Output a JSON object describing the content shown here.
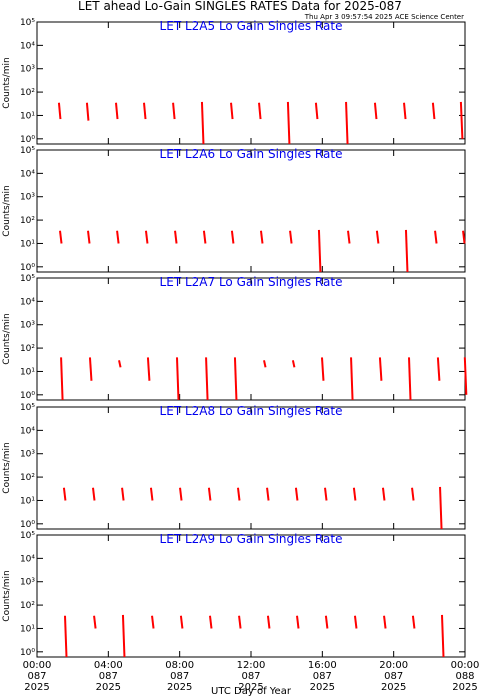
{
  "title": "LET ahead Lo-Gain SINGLES RATES Data for 2025-087",
  "subtitle": "Thu Apr  3 09:57:54 2025 ACE Science Center",
  "x_label": "UTC Day of Year",
  "chart_data": [
    {
      "type": "range",
      "title": "LET L2A5 Lo Gain Singles Rate",
      "y_label": "Counts/min",
      "color": "#ff0000",
      "log_scale": true,
      "xlim": [
        0,
        24
      ],
      "xticks": [
        0,
        4,
        8,
        12,
        16,
        20,
        24
      ],
      "ylim": [
        0.6,
        100000
      ],
      "yticks": [
        {
          "value": 1,
          "label": "10⁰"
        },
        {
          "value": 10,
          "label": "10¹"
        },
        {
          "value": 100,
          "label": "10²"
        },
        {
          "value": 1000,
          "label": "10³"
        },
        {
          "value": 10000,
          "label": "10⁴"
        },
        {
          "value": 100000,
          "label": "10⁵"
        }
      ],
      "x": [
        1.23,
        2.8,
        4.43,
        6.0,
        7.63,
        9.25,
        10.88,
        12.45,
        14.07,
        15.64,
        17.33,
        18.95,
        20.58,
        22.2,
        23.77
      ],
      "high": [
        35,
        35,
        35,
        35,
        35,
        38,
        35,
        35,
        38,
        35,
        38,
        35,
        35,
        35,
        38
      ],
      "low": [
        7,
        6,
        7,
        7,
        7,
        0.6,
        7,
        7,
        0.6,
        7,
        0.6,
        7,
        7,
        7,
        1
      ]
    },
    {
      "type": "range",
      "title": "LET L2A6 Lo Gain Singles Rate",
      "y_label": "Counts/min",
      "color": "#ff0000",
      "log_scale": true,
      "xlim": [
        0,
        24
      ],
      "xticks": [
        0,
        4,
        8,
        12,
        16,
        20,
        24
      ],
      "ylim": [
        0.6,
        100000
      ],
      "yticks": [
        {
          "value": 1,
          "label": "10⁰"
        },
        {
          "value": 10,
          "label": "10¹"
        },
        {
          "value": 100,
          "label": "10²"
        },
        {
          "value": 1000,
          "label": "10³"
        },
        {
          "value": 10000,
          "label": "10⁴"
        },
        {
          "value": 100000,
          "label": "10⁵"
        }
      ],
      "x": [
        1.29,
        2.86,
        4.49,
        6.11,
        7.74,
        9.36,
        10.93,
        12.56,
        14.19,
        15.81,
        17.44,
        19.06,
        20.69,
        22.32,
        23.89
      ],
      "high": [
        35,
        35,
        35,
        35,
        35,
        35,
        35,
        35,
        35,
        38,
        35,
        35,
        38,
        35,
        35
      ],
      "low": [
        10,
        10,
        10,
        10,
        10,
        10,
        10,
        10,
        10,
        0.6,
        10,
        10,
        0.6,
        10,
        10
      ]
    },
    {
      "type": "range",
      "title": "LET L2A7 Lo Gain Singles Rate",
      "y_label": "Counts/min",
      "color": "#ff0000",
      "log_scale": true,
      "xlim": [
        0,
        24
      ],
      "xticks": [
        0,
        4,
        8,
        12,
        16,
        20,
        24
      ],
      "ylim": [
        0.6,
        100000
      ],
      "yticks": [
        {
          "value": 1,
          "label": "10⁰"
        },
        {
          "value": 10,
          "label": "10¹"
        },
        {
          "value": 100,
          "label": "10²"
        },
        {
          "value": 1000,
          "label": "10³"
        },
        {
          "value": 10000,
          "label": "10⁴"
        },
        {
          "value": 100000,
          "label": "10⁵"
        }
      ],
      "x": [
        1.35,
        2.97,
        4.6,
        6.22,
        7.85,
        9.48,
        11.1,
        12.73,
        14.35,
        15.98,
        17.61,
        19.23,
        20.86,
        22.48,
        23.99
      ],
      "high": [
        40,
        40,
        30,
        40,
        40,
        40,
        40,
        30,
        30,
        40,
        40,
        40,
        40,
        40,
        40
      ],
      "low": [
        0.6,
        4,
        15,
        4,
        0.6,
        0.6,
        0.6,
        15,
        15,
        4,
        0.6,
        4,
        0.6,
        4,
        1
      ]
    },
    {
      "type": "range",
      "title": "LET L2A8 Lo Gain Singles Rate",
      "y_label": "Counts/min",
      "color": "#ff0000",
      "log_scale": true,
      "xlim": [
        0,
        24
      ],
      "xticks": [
        0,
        4,
        8,
        12,
        16,
        20,
        24
      ],
      "ylim": [
        0.6,
        100000
      ],
      "yticks": [
        {
          "value": 1,
          "label": "10⁰"
        },
        {
          "value": 10,
          "label": "10¹"
        },
        {
          "value": 100,
          "label": "10²"
        },
        {
          "value": 1000,
          "label": "10³"
        },
        {
          "value": 10000,
          "label": "10⁴"
        },
        {
          "value": 100000,
          "label": "10⁵"
        }
      ],
      "x": [
        1.51,
        3.14,
        4.77,
        6.39,
        8.02,
        9.64,
        11.27,
        12.9,
        14.52,
        16.15,
        17.77,
        19.4,
        21.03,
        22.6
      ],
      "high": [
        35,
        35,
        35,
        35,
        35,
        35,
        35,
        35,
        35,
        35,
        35,
        35,
        35,
        38
      ],
      "low": [
        10,
        10,
        10,
        10,
        10,
        10,
        10,
        10,
        10,
        10,
        10,
        10,
        10,
        0.6
      ]
    },
    {
      "type": "range",
      "title": "LET L2A9 Lo Gain Singles Rate",
      "y_label": "Counts/min",
      "color": "#ff0000",
      "log_scale": true,
      "xlim": [
        0,
        24
      ],
      "xticks": [
        {
          "value": 0,
          "label": "00:00\n087\n2025"
        },
        {
          "value": 4,
          "label": "04:00\n087\n2025"
        },
        {
          "value": 8,
          "label": "08:00\n087\n2025"
        },
        {
          "value": 12,
          "label": "12:00\n087\n2025"
        },
        {
          "value": 16,
          "label": "16:00\n087\n2025"
        },
        {
          "value": 20,
          "label": "20:00\n087\n2025"
        },
        {
          "value": 24,
          "label": "00:00\n088\n2025"
        }
      ],
      "ylim": [
        0.6,
        100000
      ],
      "yticks": [
        {
          "value": 1,
          "label": "10⁰"
        },
        {
          "value": 10,
          "label": "10¹"
        },
        {
          "value": 100,
          "label": "10²"
        },
        {
          "value": 1000,
          "label": "10³"
        },
        {
          "value": 10000,
          "label": "10⁴"
        },
        {
          "value": 100000,
          "label": "10⁵"
        }
      ],
      "x": [
        1.57,
        3.2,
        4.82,
        6.45,
        8.07,
        9.7,
        11.33,
        12.95,
        14.58,
        16.2,
        17.83,
        19.46,
        21.08,
        22.71
      ],
      "high": [
        35,
        35,
        38,
        35,
        35,
        35,
        35,
        35,
        35,
        35,
        35,
        35,
        35,
        38
      ],
      "low": [
        0.6,
        10,
        0.6,
        10,
        10,
        10,
        10,
        10,
        10,
        10,
        10,
        10,
        10,
        0.6
      ]
    }
  ]
}
